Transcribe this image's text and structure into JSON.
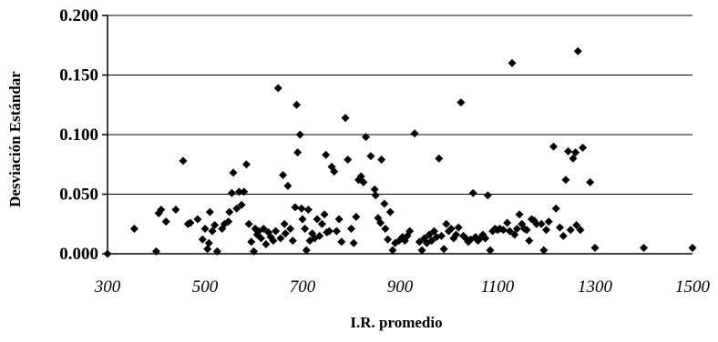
{
  "chart_data": {
    "type": "scatter",
    "xlabel": "I.R. promedio",
    "ylabel": "Desviación Estándar",
    "xlim": [
      300,
      1500
    ],
    "ylim": [
      0,
      0.2
    ],
    "x_ticks": [
      "300",
      "500",
      "700",
      "900",
      "1100",
      "1300",
      "1500"
    ],
    "y_ticks": [
      "0.000",
      "0.050",
      "0.100",
      "0.150",
      "0.200"
    ],
    "grid": "horizontal",
    "legend": "none",
    "marker": "diamond",
    "marker_color": "#000000",
    "points": [
      [
        300,
        0.0
      ],
      [
        355,
        0.021
      ],
      [
        400,
        0.002
      ],
      [
        405,
        0.034
      ],
      [
        410,
        0.037
      ],
      [
        420,
        0.027
      ],
      [
        440,
        0.037
      ],
      [
        455,
        0.078
      ],
      [
        465,
        0.025
      ],
      [
        470,
        0.026
      ],
      [
        485,
        0.029
      ],
      [
        495,
        0.012
      ],
      [
        500,
        0.021
      ],
      [
        505,
        0.004
      ],
      [
        508,
        0.009
      ],
      [
        510,
        0.035
      ],
      [
        515,
        0.019
      ],
      [
        520,
        0.024
      ],
      [
        525,
        0.002
      ],
      [
        535,
        0.021
      ],
      [
        540,
        0.025
      ],
      [
        548,
        0.027
      ],
      [
        550,
        0.035
      ],
      [
        555,
        0.051
      ],
      [
        558,
        0.068
      ],
      [
        565,
        0.038
      ],
      [
        570,
        0.052
      ],
      [
        575,
        0.041
      ],
      [
        580,
        0.052
      ],
      [
        585,
        0.075
      ],
      [
        590,
        0.025
      ],
      [
        595,
        0.01
      ],
      [
        600,
        0.002
      ],
      [
        603,
        0.021
      ],
      [
        607,
        0.016
      ],
      [
        610,
        0.019
      ],
      [
        615,
        0.013
      ],
      [
        620,
        0.021
      ],
      [
        625,
        0.008
      ],
      [
        630,
        0.018
      ],
      [
        635,
        0.014
      ],
      [
        640,
        0.011
      ],
      [
        645,
        0.019
      ],
      [
        650,
        0.139
      ],
      [
        655,
        0.013
      ],
      [
        660,
        0.066
      ],
      [
        663,
        0.025
      ],
      [
        665,
        0.017
      ],
      [
        670,
        0.057
      ],
      [
        675,
        0.021
      ],
      [
        680,
        0.011
      ],
      [
        685,
        0.039
      ],
      [
        688,
        0.125
      ],
      [
        690,
        0.085
      ],
      [
        695,
        0.1
      ],
      [
        698,
        0.038
      ],
      [
        700,
        0.029
      ],
      [
        705,
        0.021
      ],
      [
        708,
        0.003
      ],
      [
        712,
        0.037
      ],
      [
        715,
        0.011
      ],
      [
        720,
        0.017
      ],
      [
        725,
        0.013
      ],
      [
        730,
        0.029
      ],
      [
        735,
        0.015
      ],
      [
        740,
        0.025
      ],
      [
        745,
        0.033
      ],
      [
        748,
        0.083
      ],
      [
        750,
        0.018
      ],
      [
        755,
        0.019
      ],
      [
        760,
        0.073
      ],
      [
        765,
        0.069
      ],
      [
        770,
        0.019
      ],
      [
        775,
        0.029
      ],
      [
        780,
        0.01
      ],
      [
        788,
        0.114
      ],
      [
        793,
        0.079
      ],
      [
        800,
        0.021
      ],
      [
        805,
        0.009
      ],
      [
        810,
        0.031
      ],
      [
        815,
        0.062
      ],
      [
        820,
        0.065
      ],
      [
        825,
        0.06
      ],
      [
        830,
        0.098
      ],
      [
        840,
        0.082
      ],
      [
        848,
        0.054
      ],
      [
        850,
        0.049
      ],
      [
        855,
        0.03
      ],
      [
        860,
        0.026
      ],
      [
        862,
        0.079
      ],
      [
        868,
        0.042
      ],
      [
        870,
        0.021
      ],
      [
        875,
        0.012
      ],
      [
        880,
        0.035
      ],
      [
        885,
        0.003
      ],
      [
        890,
        0.009
      ],
      [
        898,
        0.011
      ],
      [
        905,
        0.014
      ],
      [
        910,
        0.011
      ],
      [
        915,
        0.015
      ],
      [
        920,
        0.019
      ],
      [
        930,
        0.101
      ],
      [
        940,
        0.01
      ],
      [
        945,
        0.003
      ],
      [
        950,
        0.013
      ],
      [
        955,
        0.009
      ],
      [
        960,
        0.016
      ],
      [
        965,
        0.011
      ],
      [
        970,
        0.019
      ],
      [
        975,
        0.014
      ],
      [
        980,
        0.08
      ],
      [
        985,
        0.015
      ],
      [
        990,
        0.004
      ],
      [
        995,
        0.025
      ],
      [
        1000,
        0.019
      ],
      [
        1005,
        0.021
      ],
      [
        1010,
        0.013
      ],
      [
        1015,
        0.016
      ],
      [
        1020,
        0.022
      ],
      [
        1025,
        0.127
      ],
      [
        1030,
        0.015
      ],
      [
        1035,
        0.013
      ],
      [
        1040,
        0.01
      ],
      [
        1045,
        0.012
      ],
      [
        1050,
        0.051
      ],
      [
        1055,
        0.014
      ],
      [
        1060,
        0.011
      ],
      [
        1065,
        0.013
      ],
      [
        1070,
        0.016
      ],
      [
        1075,
        0.013
      ],
      [
        1080,
        0.049
      ],
      [
        1085,
        0.003
      ],
      [
        1090,
        0.019
      ],
      [
        1095,
        0.021
      ],
      [
        1100,
        0.02
      ],
      [
        1105,
        0.021
      ],
      [
        1112,
        0.02
      ],
      [
        1120,
        0.026
      ],
      [
        1125,
        0.019
      ],
      [
        1130,
        0.16
      ],
      [
        1135,
        0.016
      ],
      [
        1140,
        0.021
      ],
      [
        1145,
        0.033
      ],
      [
        1150,
        0.025
      ],
      [
        1155,
        0.021
      ],
      [
        1160,
        0.02
      ],
      [
        1165,
        0.011
      ],
      [
        1170,
        0.029
      ],
      [
        1175,
        0.028
      ],
      [
        1180,
        0.025
      ],
      [
        1190,
        0.025
      ],
      [
        1195,
        0.003
      ],
      [
        1200,
        0.02
      ],
      [
        1205,
        0.027
      ],
      [
        1215,
        0.09
      ],
      [
        1220,
        0.038
      ],
      [
        1228,
        0.022
      ],
      [
        1235,
        0.015
      ],
      [
        1240,
        0.062
      ],
      [
        1245,
        0.086
      ],
      [
        1250,
        0.02
      ],
      [
        1255,
        0.08
      ],
      [
        1260,
        0.085
      ],
      [
        1262,
        0.024
      ],
      [
        1265,
        0.17
      ],
      [
        1270,
        0.02
      ],
      [
        1275,
        0.089
      ],
      [
        1290,
        0.06
      ],
      [
        1300,
        0.005
      ],
      [
        1400,
        0.005
      ],
      [
        1500,
        0.005
      ]
    ]
  }
}
